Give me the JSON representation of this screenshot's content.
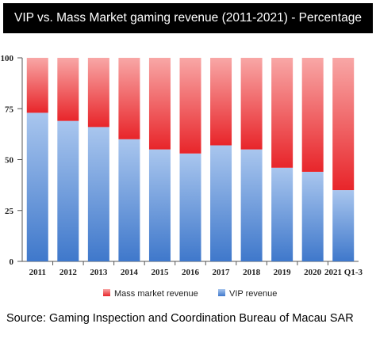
{
  "header": {
    "title": "VIP vs. Mass Market gaming revenue (2011-2021) -  Percentage"
  },
  "footer": {
    "source": "Source: Gaming Inspection and Coordination Bureau of Macau SAR"
  },
  "chart_data": {
    "type": "bar",
    "stacked": true,
    "categories": [
      "2011",
      "2012",
      "2013",
      "2014",
      "2015",
      "2016",
      "2017",
      "2018",
      "2019",
      "2020",
      "2021 Q1-3"
    ],
    "series": [
      {
        "name": "VIP revenue",
        "color": "#4f86d2",
        "values": [
          73,
          69,
          66,
          60,
          55,
          53,
          57,
          55,
          46,
          44,
          35
        ]
      },
      {
        "name": "Mass market revenue",
        "color": "#ee3a3c",
        "values": [
          27,
          31,
          34,
          40,
          45,
          47,
          43,
          45,
          54,
          56,
          65
        ]
      }
    ],
    "yticks": [
      0,
      25,
      50,
      75,
      100
    ],
    "ylim": [
      0,
      100
    ],
    "legend": [
      "Mass market revenue",
      "VIP revenue"
    ],
    "legend_position": "bottom",
    "grid": false
  }
}
